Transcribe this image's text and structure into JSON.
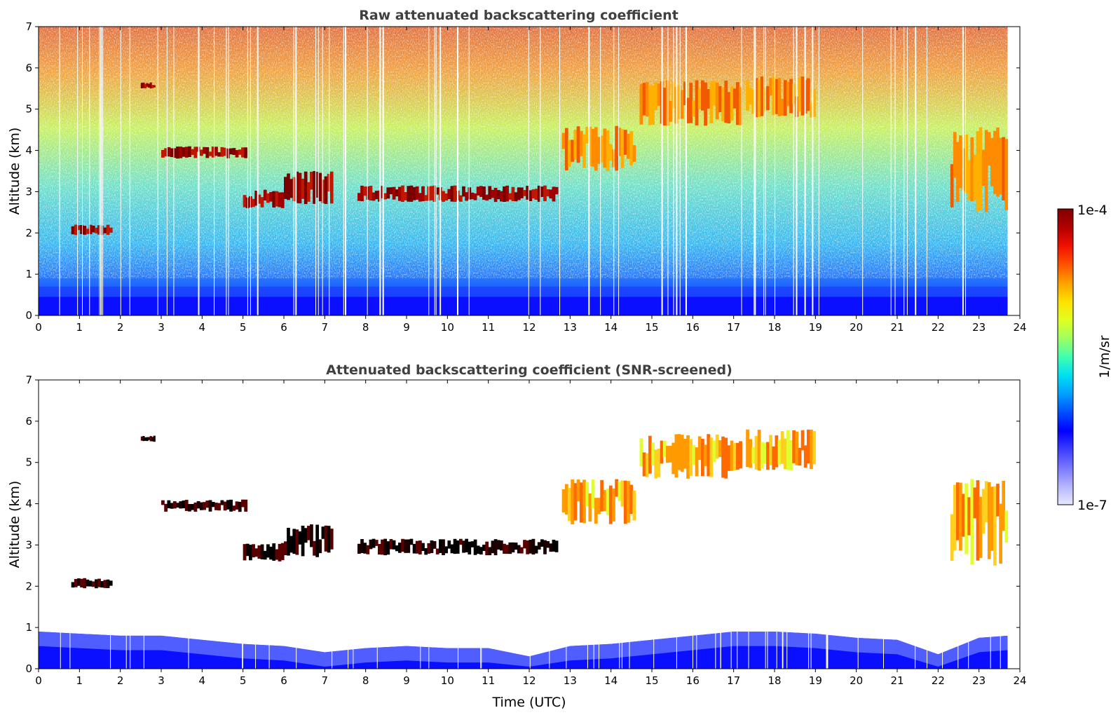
{
  "chart_data": [
    {
      "type": "heatmap",
      "title": "Raw attenuated backscattering coefficient",
      "xlabel": "",
      "ylabel": "Altitude (km)",
      "xlim": [
        0,
        24
      ],
      "ylim": [
        0,
        7
      ],
      "xticks": [
        "0",
        "1",
        "2",
        "3",
        "4",
        "5",
        "6",
        "7",
        "8",
        "9",
        "10",
        "11",
        "12",
        "13",
        "14",
        "15",
        "16",
        "17",
        "18",
        "19",
        "20",
        "21",
        "22",
        "23",
        "24"
      ],
      "yticks": [
        "0",
        "1",
        "2",
        "3",
        "4",
        "5",
        "6",
        "7"
      ],
      "data_end_time": 23.7,
      "cloud_layers": [
        {
          "start": 0.8,
          "end": 1.8,
          "base": 1.95,
          "top": 2.2,
          "intensity": "high"
        },
        {
          "start": 2.5,
          "end": 2.85,
          "base": 5.5,
          "top": 5.65,
          "intensity": "high"
        },
        {
          "start": 3.0,
          "end": 5.1,
          "base": 3.8,
          "top": 4.1,
          "intensity": "high"
        },
        {
          "start": 5.0,
          "end": 6.0,
          "base": 2.6,
          "top": 3.05,
          "intensity": "high"
        },
        {
          "start": 6.0,
          "end": 7.2,
          "base": 2.7,
          "top": 3.5,
          "intensity": "high"
        },
        {
          "start": 7.8,
          "end": 12.7,
          "base": 2.75,
          "top": 3.15,
          "intensity": "high"
        },
        {
          "start": 12.8,
          "end": 14.6,
          "base": 3.5,
          "top": 4.6,
          "intensity": "medium"
        },
        {
          "start": 14.7,
          "end": 17.2,
          "base": 4.6,
          "top": 5.7,
          "intensity": "medium"
        },
        {
          "start": 17.3,
          "end": 19.0,
          "base": 4.8,
          "top": 5.8,
          "intensity": "medium"
        },
        {
          "start": 22.3,
          "end": 23.7,
          "base": 2.5,
          "top": 4.6,
          "intensity": "medium"
        }
      ]
    },
    {
      "type": "heatmap",
      "title": "Attenuated backscattering coefficient (SNR-screened)",
      "xlabel": "Time (UTC)",
      "ylabel": "Altitude (km)",
      "xlim": [
        0,
        24
      ],
      "ylim": [
        0,
        7
      ],
      "xticks": [
        "0",
        "1",
        "2",
        "3",
        "4",
        "5",
        "6",
        "7",
        "8",
        "9",
        "10",
        "11",
        "12",
        "13",
        "14",
        "15",
        "16",
        "17",
        "18",
        "19",
        "20",
        "21",
        "22",
        "23",
        "24"
      ],
      "yticks": [
        "0",
        "1",
        "2",
        "3",
        "4",
        "5",
        "6",
        "7"
      ],
      "data_end_time": 23.7,
      "boundary_layer_top_km": [
        0.9,
        0.85,
        0.8,
        0.8,
        0.7,
        0.6,
        0.55,
        0.4,
        0.5,
        0.55,
        0.5,
        0.5,
        0.3,
        0.55,
        0.6,
        0.7,
        0.8,
        0.9,
        0.9,
        0.85,
        0.75,
        0.7,
        0.35,
        0.75,
        0.8
      ]
    }
  ],
  "colorbar": {
    "label": "1/m/sr",
    "max_label": "1e-4",
    "min_label": "1e-7",
    "colors": [
      "#e8e8ff",
      "#b4b4ff",
      "#7878ff",
      "#3c3cff",
      "#0000ff",
      "#0050ff",
      "#00a0ff",
      "#00e0f0",
      "#40ffb0",
      "#a0ff60",
      "#e0ff20",
      "#ffe000",
      "#ffa000",
      "#ff5000",
      "#f01000",
      "#b00000",
      "#800000"
    ]
  }
}
